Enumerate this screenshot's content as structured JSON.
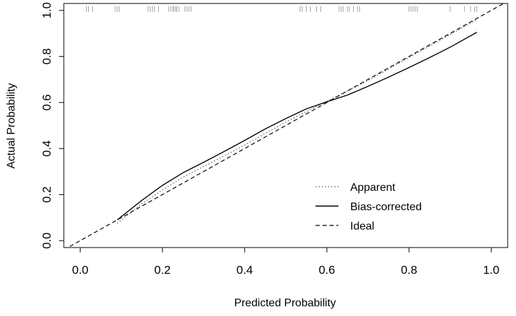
{
  "chart_data": {
    "type": "line",
    "title": "",
    "xlabel": "Predicted Probability",
    "ylabel": "Actual Probability",
    "xlim": [
      -0.04,
      1.04
    ],
    "ylim": [
      -0.03,
      1.03
    ],
    "xticks": [
      0.0,
      0.2,
      0.4,
      0.6,
      0.8,
      1.0
    ],
    "xtick_labels": [
      "0.0",
      "0.2",
      "0.4",
      "0.6",
      "0.8",
      "1.0"
    ],
    "yticks": [
      0.0,
      0.2,
      0.4,
      0.6,
      0.8,
      1.0
    ],
    "ytick_labels": [
      "0.0",
      "0.2",
      "0.4",
      "0.6",
      "0.8",
      "1.0"
    ],
    "grid": false,
    "legend_position": "bottom-right",
    "series": [
      {
        "name": "Apparent",
        "style": "dotted",
        "color": "#555555",
        "x": [
          0.09,
          0.15,
          0.2,
          0.25,
          0.3,
          0.35,
          0.4,
          0.45,
          0.5,
          0.55,
          0.6,
          0.65,
          0.7,
          0.75,
          0.8,
          0.85,
          0.9,
          0.95,
          0.965
        ],
        "y": [
          0.075,
          0.16,
          0.22,
          0.275,
          0.322,
          0.368,
          0.415,
          0.465,
          0.515,
          0.56,
          0.605,
          0.65,
          0.695,
          0.745,
          0.795,
          0.845,
          0.895,
          0.945,
          0.96
        ]
      },
      {
        "name": "Bias-corrected",
        "style": "solid",
        "color": "#000000",
        "x": [
          0.09,
          0.15,
          0.2,
          0.25,
          0.3,
          0.35,
          0.4,
          0.45,
          0.5,
          0.55,
          0.6,
          0.65,
          0.7,
          0.75,
          0.8,
          0.85,
          0.9,
          0.965
        ],
        "y": [
          0.09,
          0.175,
          0.24,
          0.295,
          0.34,
          0.387,
          0.435,
          0.485,
          0.53,
          0.572,
          0.603,
          0.632,
          0.67,
          0.71,
          0.752,
          0.795,
          0.84,
          0.905
        ]
      },
      {
        "name": "Ideal",
        "style": "dashed",
        "color": "#000000",
        "x": [
          -0.04,
          1.04
        ],
        "y": [
          -0.04,
          1.04
        ]
      }
    ],
    "rug_x": [
      0.015,
      0.02,
      0.03,
      0.085,
      0.09,
      0.095,
      0.165,
      0.17,
      0.175,
      0.18,
      0.19,
      0.215,
      0.22,
      0.225,
      0.228,
      0.232,
      0.235,
      0.24,
      0.255,
      0.26,
      0.265,
      0.27,
      0.535,
      0.54,
      0.55,
      0.56,
      0.575,
      0.585,
      0.63,
      0.635,
      0.64,
      0.65,
      0.655,
      0.665,
      0.675,
      0.68,
      0.8,
      0.805,
      0.81,
      0.815,
      0.82,
      0.9,
      0.935,
      0.95,
      0.96,
      0.965
    ]
  }
}
